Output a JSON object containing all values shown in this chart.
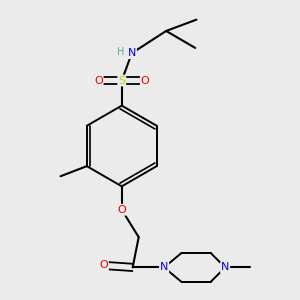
{
  "bg_color": "#ebebeb",
  "atom_colors": {
    "C": "#000000",
    "H": "#5aabab",
    "N": "#0000ee",
    "O": "#ee0000",
    "S": "#cccc00"
  },
  "figsize": [
    3.0,
    3.0
  ],
  "dpi": 100
}
